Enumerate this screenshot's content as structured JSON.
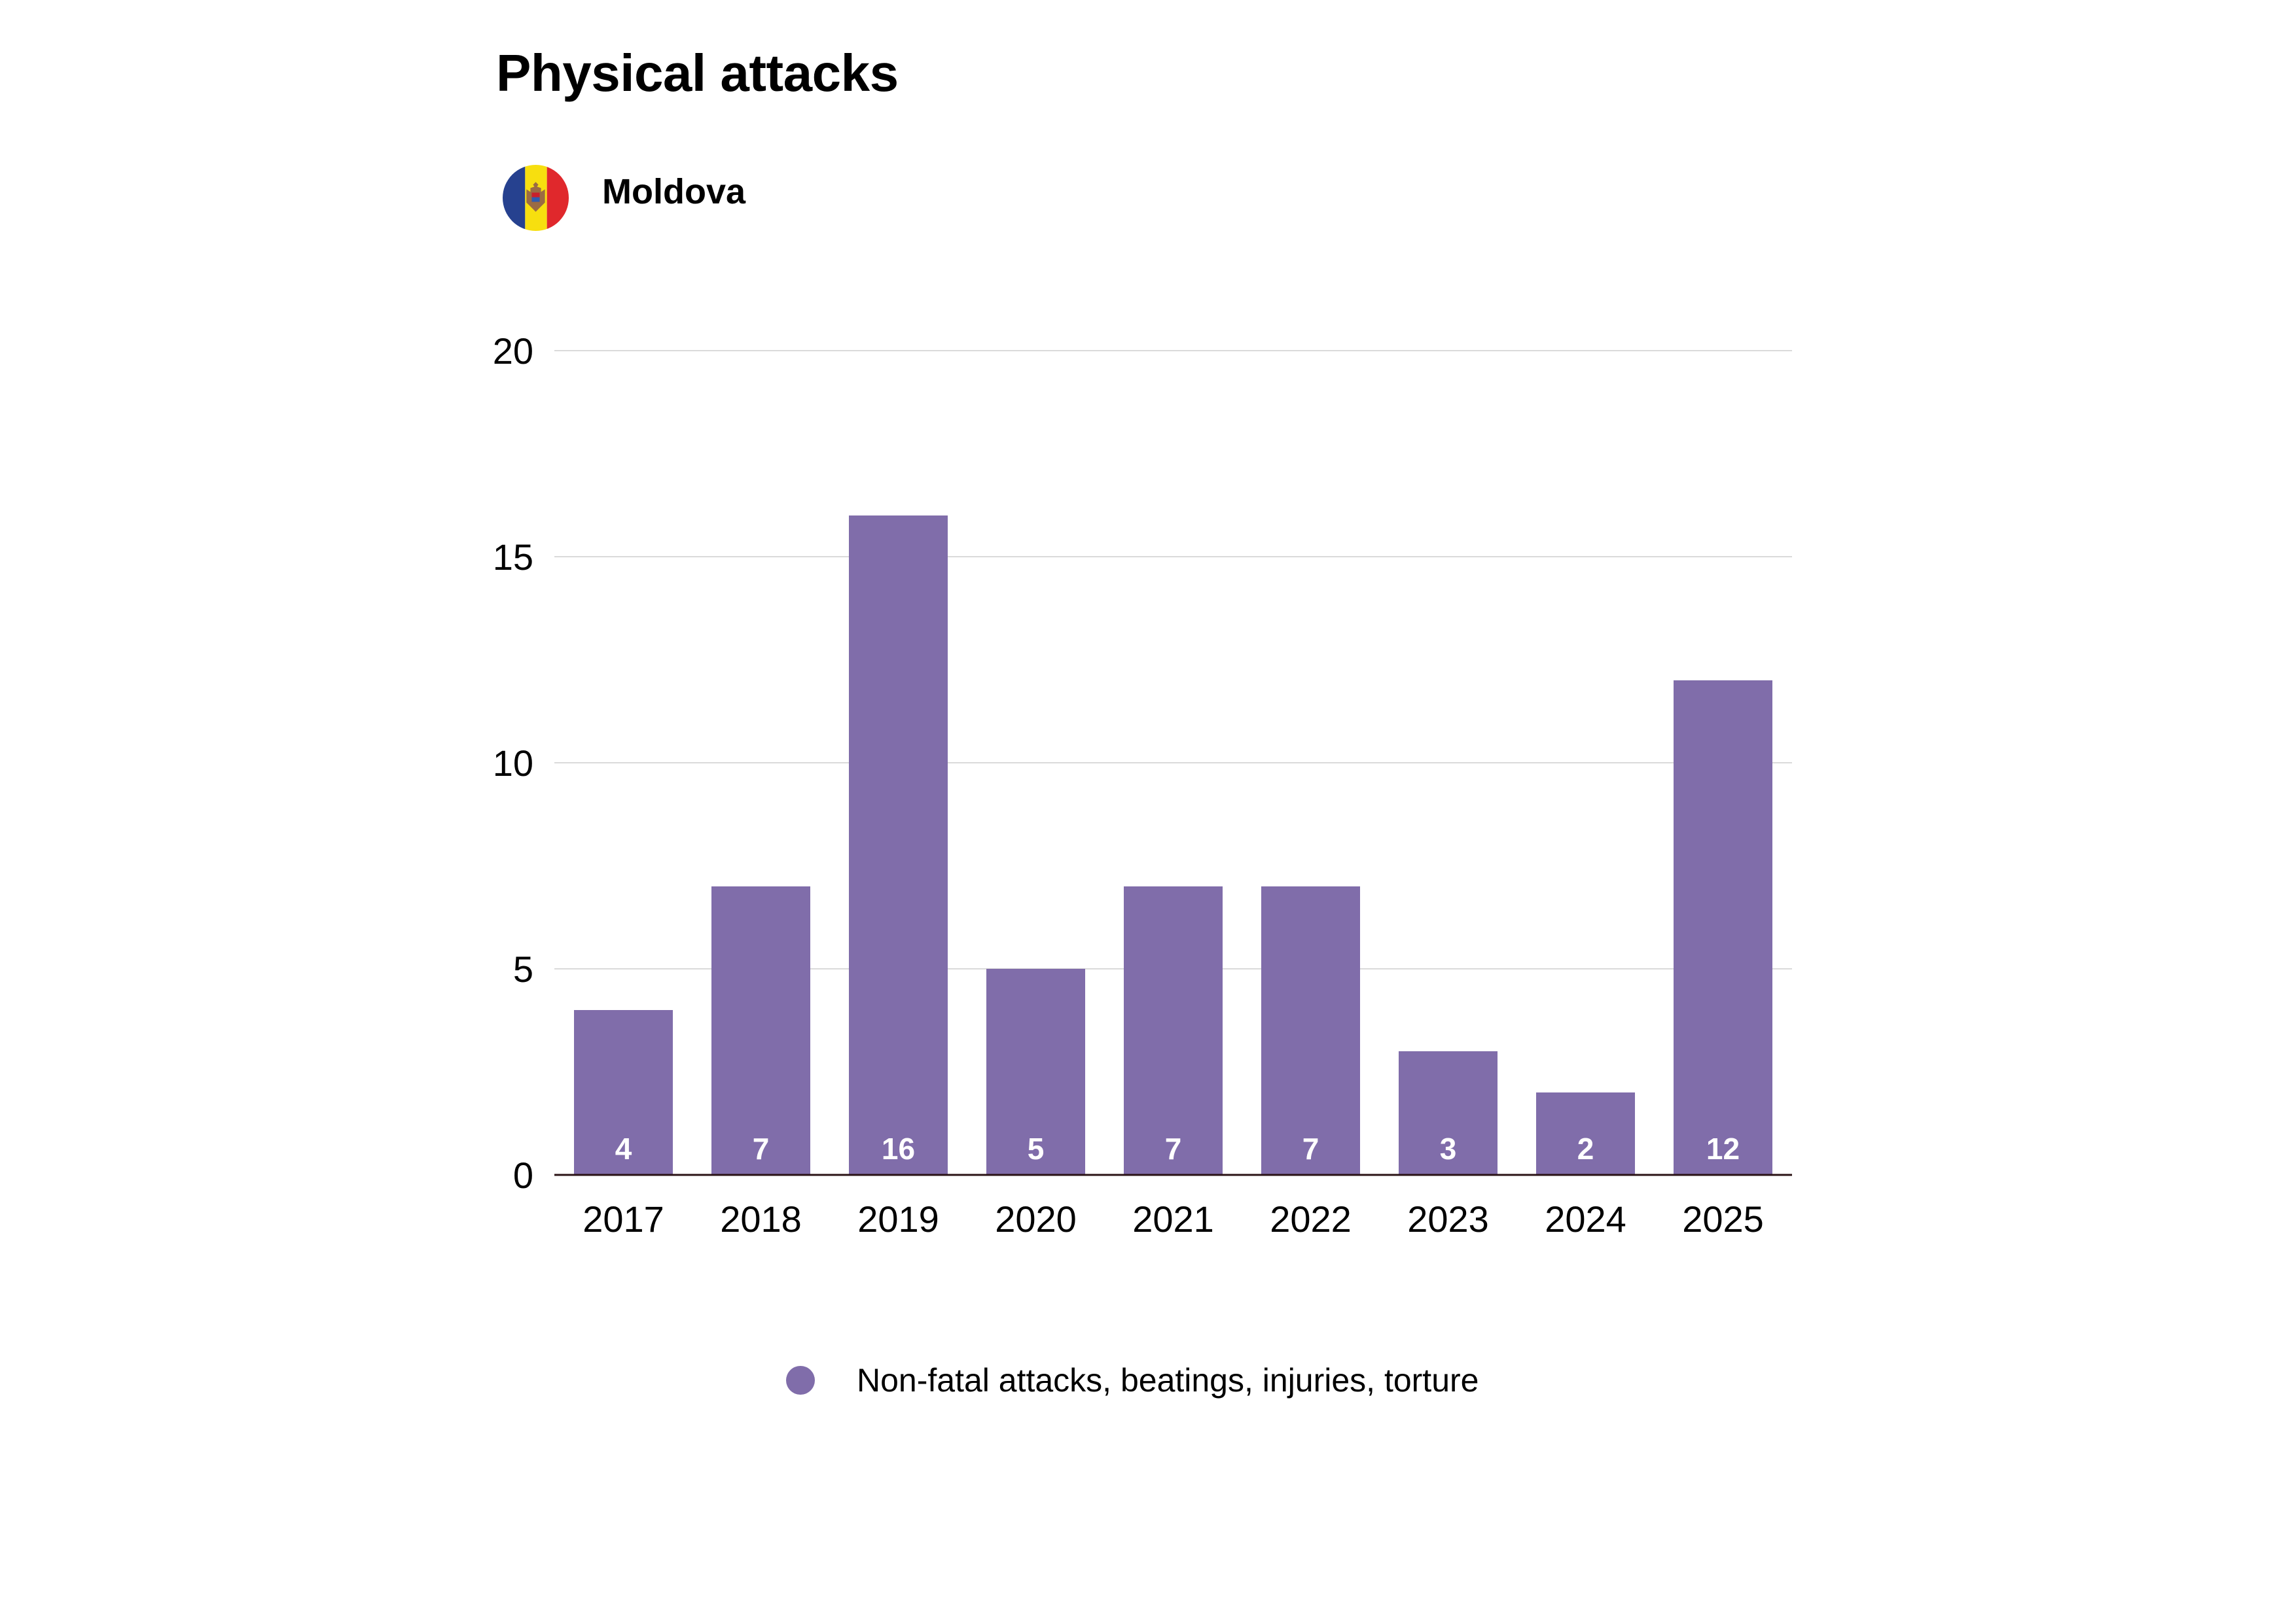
{
  "header": {
    "title": "Physical attacks",
    "country": "Moldova",
    "flag_icon": "moldova-flag-icon",
    "flag_colors": {
      "blue": "#26418F",
      "yellow": "#F7DF0F",
      "red": "#E0282C",
      "emblem": "#9B6B43"
    }
  },
  "legend": {
    "items": [
      {
        "label": "Non-fatal attacks, beatings, injuries, torture",
        "color": "#806DAA"
      }
    ]
  },
  "colors": {
    "bar": "#806DAA",
    "bar_label": "#FFFFFF",
    "grid": "#DADADA",
    "axis": "#2A1215",
    "text": "#000000"
  },
  "chart_data": {
    "type": "bar",
    "title": "Physical attacks",
    "subtitle": "Moldova",
    "xlabel": "",
    "ylabel": "",
    "categories": [
      "2017",
      "2018",
      "2019",
      "2020",
      "2021",
      "2022",
      "2023",
      "2024",
      "2025"
    ],
    "series": [
      {
        "name": "Non-fatal attacks, beatings, injuries, torture",
        "values": [
          4,
          7,
          16,
          5,
          7,
          7,
          3,
          2,
          12
        ]
      }
    ],
    "ylim": [
      0,
      20
    ],
    "yticks": [
      0,
      5,
      10,
      15,
      20
    ],
    "grid": true,
    "data_labels": true,
    "legend_position": "bottom-center"
  }
}
